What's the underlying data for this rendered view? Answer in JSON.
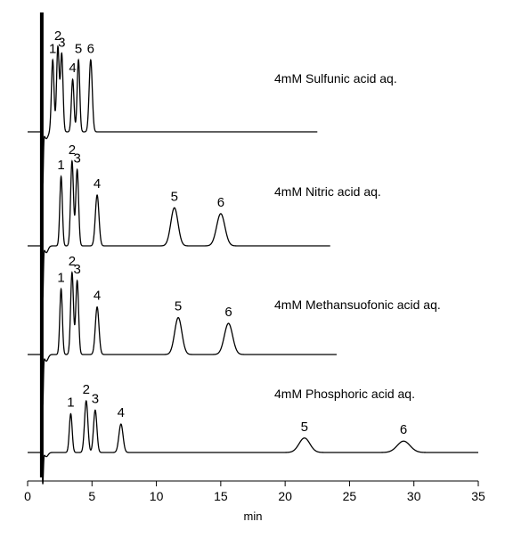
{
  "chart_data": {
    "type": "line",
    "xlabel": "min",
    "xlim": [
      0,
      35
    ],
    "xticks": [
      0,
      5,
      10,
      15,
      20,
      25,
      30,
      35
    ],
    "grid": false,
    "series": [
      {
        "name": "4mM Sulfunic acid aq.",
        "run_end_min": 22.5,
        "peaks": [
          {
            "label": "1",
            "t": 1.95,
            "h": 0.85,
            "w": 0.1
          },
          {
            "label": "2",
            "t": 2.35,
            "h": 1.0,
            "w": 0.1
          },
          {
            "label": "3",
            "t": 2.65,
            "h": 0.92,
            "w": 0.1
          },
          {
            "label": "4",
            "t": 3.5,
            "h": 0.62,
            "w": 0.1
          },
          {
            "label": "5",
            "t": 3.95,
            "h": 0.85,
            "w": 0.1
          },
          {
            "label": "6",
            "t": 4.9,
            "h": 0.85,
            "w": 0.12
          }
        ]
      },
      {
        "name": "4mM Nitric acid aq.",
        "run_end_min": 23.5,
        "peaks": [
          {
            "label": "1",
            "t": 2.6,
            "h": 0.82,
            "w": 0.1
          },
          {
            "label": "2",
            "t": 3.45,
            "h": 1.0,
            "w": 0.11
          },
          {
            "label": "3",
            "t": 3.85,
            "h": 0.9,
            "w": 0.11
          },
          {
            "label": "4",
            "t": 5.4,
            "h": 0.6,
            "w": 0.14
          },
          {
            "label": "5",
            "t": 11.4,
            "h": 0.45,
            "w": 0.28
          },
          {
            "label": "6",
            "t": 15.0,
            "h": 0.38,
            "w": 0.32
          }
        ]
      },
      {
        "name": "4mM Methansuofonic acid aq.",
        "run_end_min": 24.0,
        "peaks": [
          {
            "label": "1",
            "t": 2.6,
            "h": 0.8,
            "w": 0.1
          },
          {
            "label": "2",
            "t": 3.45,
            "h": 1.0,
            "w": 0.11
          },
          {
            "label": "3",
            "t": 3.85,
            "h": 0.9,
            "w": 0.11
          },
          {
            "label": "4",
            "t": 5.4,
            "h": 0.58,
            "w": 0.14
          },
          {
            "label": "5",
            "t": 11.7,
            "h": 0.45,
            "w": 0.28
          },
          {
            "label": "6",
            "t": 15.6,
            "h": 0.38,
            "w": 0.32
          }
        ]
      },
      {
        "name": "4mM Phosphoric acid aq.",
        "run_end_min": 35.0,
        "peaks": [
          {
            "label": "1",
            "t": 3.35,
            "h": 0.75,
            "w": 0.11
          },
          {
            "label": "2",
            "t": 4.55,
            "h": 1.0,
            "w": 0.13
          },
          {
            "label": "3",
            "t": 5.25,
            "h": 0.82,
            "w": 0.13
          },
          {
            "label": "4",
            "t": 7.25,
            "h": 0.55,
            "w": 0.16
          },
          {
            "label": "5",
            "t": 21.5,
            "h": 0.28,
            "w": 0.42
          },
          {
            "label": "6",
            "t": 29.2,
            "h": 0.22,
            "w": 0.5
          }
        ]
      }
    ]
  }
}
